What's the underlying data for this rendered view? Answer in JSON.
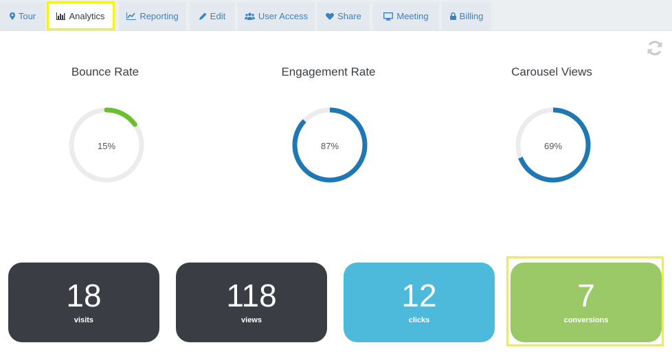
{
  "tabs": [
    {
      "label": "Tour",
      "icon": "map-marker-icon"
    },
    {
      "label": "Analytics",
      "icon": "bar-chart-icon",
      "active": true
    },
    {
      "label": "Reporting",
      "icon": "line-chart-icon"
    },
    {
      "label": "Edit",
      "icon": "pencil-icon"
    },
    {
      "label": "User Access",
      "icon": "users-icon"
    },
    {
      "label": "Share",
      "icon": "heart-icon"
    },
    {
      "label": "Meeting",
      "icon": "monitor-icon"
    },
    {
      "label": "Billing",
      "icon": "lock-icon"
    }
  ],
  "gauges": [
    {
      "title": "Bounce Rate",
      "percent_label": "15%",
      "value": 15,
      "color": "#6cbf2f"
    },
    {
      "title": "Engagement Rate",
      "percent_label": "87%",
      "value": 87,
      "color": "#1f77b4"
    },
    {
      "title": "Carousel Views",
      "percent_label": "69%",
      "value": 69,
      "color": "#1f77b4"
    }
  ],
  "gauge_track_color": "#ececec",
  "stats": [
    {
      "value": "18",
      "label": "visits",
      "color": "#3a3e44"
    },
    {
      "value": "118",
      "label": "views",
      "color": "#3a3e44"
    },
    {
      "value": "12",
      "label": "clicks",
      "color": "#4ebadb"
    },
    {
      "value": "7",
      "label": "conversions",
      "color": "#9cc968",
      "highlighted": true
    }
  ],
  "refresh_icon": "refresh-icon"
}
